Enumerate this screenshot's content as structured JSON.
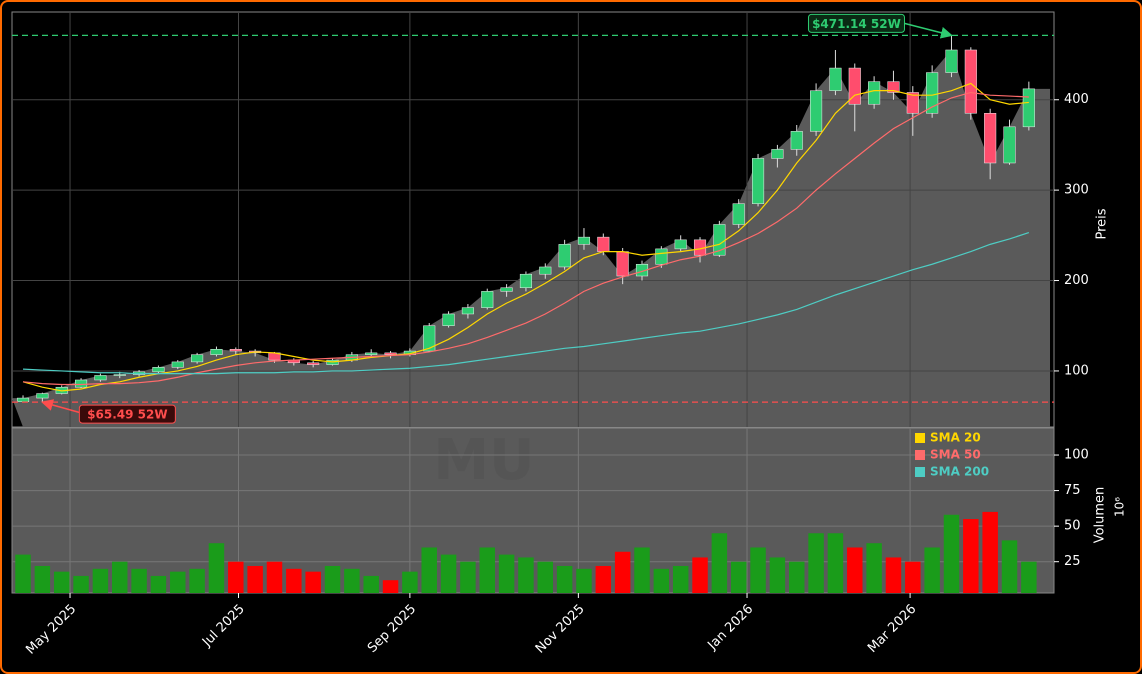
{
  "chart_data": [
    {
      "type": "candlestick",
      "ylabel": "Preis",
      "ylim": [
        38,
        497
      ],
      "yticks": [
        100,
        200,
        300,
        400
      ],
      "xlim": [
        -0.57,
        53.3
      ],
      "grid": true,
      "up_color": "#2ecc71",
      "down_color": "#ff4d6d",
      "area_color": "#5a5a5a",
      "open": [
        66,
        70,
        75,
        82,
        90,
        95,
        96,
        99,
        104,
        110,
        118,
        124,
        122,
        120,
        112,
        109,
        107,
        112,
        118,
        120,
        118,
        122,
        150,
        163,
        170,
        188,
        192,
        207,
        215,
        240,
        248,
        232,
        205,
        218,
        235,
        245,
        228,
        262,
        285,
        335,
        345,
        365,
        410,
        435,
        395,
        420,
        408,
        385,
        430,
        455,
        385,
        330,
        370
      ],
      "high": [
        73,
        76,
        84,
        92,
        97,
        99,
        101,
        106,
        112,
        120,
        127,
        126,
        124,
        121,
        114,
        111,
        114,
        121,
        124,
        122,
        125,
        153,
        166,
        174,
        191,
        196,
        210,
        219,
        245,
        258,
        252,
        236,
        222,
        238,
        250,
        248,
        266,
        290,
        340,
        350,
        372,
        418,
        455,
        440,
        426,
        432,
        415,
        438,
        471.14,
        458,
        390,
        378,
        420
      ],
      "low": [
        66,
        65.49,
        74,
        81,
        88,
        92,
        94,
        97,
        102,
        108,
        116,
        118,
        116,
        109,
        106,
        104,
        106,
        110,
        116,
        114,
        116,
        121,
        148,
        158,
        168,
        182,
        188,
        202,
        212,
        234,
        228,
        196,
        200,
        214,
        232,
        220,
        226,
        258,
        282,
        325,
        338,
        360,
        405,
        365,
        390,
        400,
        360,
        380,
        425,
        378,
        312,
        328,
        366
      ],
      "close": [
        70,
        75,
        82,
        90,
        95,
        96,
        99,
        104,
        110,
        118,
        124,
        122,
        120,
        112,
        109,
        107,
        112,
        118,
        120,
        118,
        122,
        150,
        163,
        170,
        188,
        192,
        207,
        215,
        240,
        248,
        232,
        205,
        218,
        235,
        245,
        228,
        262,
        285,
        335,
        345,
        365,
        410,
        435,
        395,
        420,
        408,
        385,
        430,
        455,
        385,
        330,
        370,
        412
      ],
      "series": [
        {
          "name": "SMA 20",
          "color": "#ffd700",
          "values": [
            88,
            82,
            78,
            80,
            85,
            88,
            93,
            97,
            100,
            105,
            112,
            118,
            121,
            120,
            116,
            112,
            110,
            112,
            115,
            117,
            119,
            125,
            135,
            148,
            163,
            175,
            185,
            197,
            210,
            225,
            232,
            232,
            228,
            230,
            232,
            235,
            240,
            255,
            275,
            300,
            330,
            355,
            385,
            405,
            410,
            410,
            405,
            405,
            410,
            418,
            400,
            395,
            397
          ]
        },
        {
          "name": "SMA 50",
          "color": "#ff6b6b",
          "values": [
            88,
            86,
            85,
            85,
            86,
            86,
            87,
            89,
            93,
            98,
            102,
            106,
            109,
            111,
            112,
            113,
            114,
            115,
            116,
            117,
            118,
            121,
            125,
            130,
            137,
            145,
            153,
            163,
            175,
            188,
            197,
            204,
            210,
            217,
            223,
            227,
            233,
            242,
            252,
            265,
            280,
            300,
            318,
            335,
            352,
            368,
            380,
            392,
            402,
            408,
            405,
            404,
            403
          ]
        },
        {
          "name": "SMA 200",
          "color": "#4ecdc4",
          "values": [
            102,
            101,
            100,
            99,
            98,
            98,
            97,
            97,
            97,
            97,
            97,
            98,
            98,
            98,
            99,
            99,
            100,
            100,
            101,
            102,
            103,
            105,
            107,
            110,
            113,
            116,
            119,
            122,
            125,
            127,
            130,
            133,
            136,
            139,
            142,
            144,
            148,
            152,
            157,
            162,
            168,
            176,
            184,
            191,
            198,
            205,
            212,
            218,
            225,
            232,
            240,
            246,
            253
          ]
        }
      ],
      "annotations": [
        {
          "text": "$471.14 52W",
          "value": 471.14,
          "x": 48,
          "color": "#2ecc71"
        },
        {
          "text": "$65.49 52W",
          "value": 65.49,
          "x": 1,
          "color": "#ff4d4d"
        }
      ]
    },
    {
      "type": "bar",
      "ylabel": "Volumen",
      "offset_label": "10⁶",
      "watermark": "MU",
      "ylim": [
        3,
        119
      ],
      "yticks": [
        25,
        50,
        75,
        100
      ],
      "xlim": [
        -0.57,
        53.3
      ],
      "grid": true,
      "up_color": "#1a9c1a",
      "down_color": "#ff0000",
      "values": [
        30,
        22,
        18,
        15,
        20,
        25,
        20,
        15,
        18,
        20,
        38,
        25,
        22,
        25,
        20,
        18,
        22,
        20,
        15,
        12,
        18,
        35,
        30,
        25,
        35,
        30,
        28,
        25,
        22,
        20,
        22,
        32,
        35,
        20,
        22,
        28,
        45,
        25,
        35,
        28,
        25,
        45,
        45,
        35,
        38,
        28,
        25,
        35,
        58,
        55,
        60,
        40,
        25
      ],
      "xticks": [
        {
          "value": 2.43,
          "label": "May 2025"
        },
        {
          "value": 11.14,
          "label": "Jul 2025"
        },
        {
          "value": 20,
          "label": "Sep 2025"
        },
        {
          "value": 28.71,
          "label": "Nov 2025"
        },
        {
          "value": 37.43,
          "label": "Jan 2026"
        },
        {
          "value": 45.86,
          "label": "Mar 2026"
        }
      ]
    }
  ]
}
